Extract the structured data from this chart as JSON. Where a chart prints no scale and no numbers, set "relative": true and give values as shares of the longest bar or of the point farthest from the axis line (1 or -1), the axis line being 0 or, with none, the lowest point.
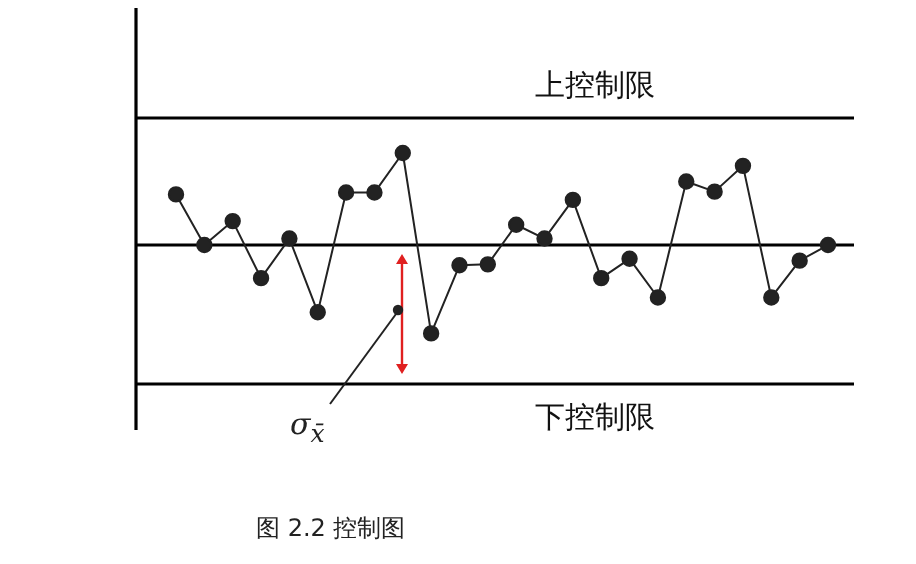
{
  "chart_data": {
    "type": "line",
    "relative": true,
    "marker": "circle",
    "legend": false,
    "categories": [
      null,
      null,
      null,
      null,
      null,
      null,
      null,
      null,
      null,
      null,
      null,
      null,
      null,
      null,
      null,
      null,
      null,
      null,
      null,
      null,
      null,
      null,
      null,
      null
    ],
    "series": [
      {
        "color": "#222222",
        "values": [
          0.55,
          0,
          0.26,
          -0.36,
          0.07,
          -0.73,
          0.57,
          0.57,
          1,
          -0.96,
          -0.22,
          -0.21,
          0.22,
          0.07,
          0.49,
          -0.36,
          -0.15,
          -0.57,
          0.69,
          0.58,
          0.86,
          -0.57,
          -0.17,
          0
        ]
      }
    ],
    "ref_lines": [
      {
        "axis": "y",
        "value": 1.38,
        "label": "上控制限",
        "color": "#000000"
      },
      {
        "axis": "y",
        "value": 0,
        "label": null,
        "color": "#000000"
      },
      {
        "axis": "y",
        "value": -1.51,
        "label": "下控制限",
        "color": "#000000"
      }
    ],
    "annotations": [
      "σ$_{x̄}$",
      "图 2.2 控制图"
    ]
  }
}
